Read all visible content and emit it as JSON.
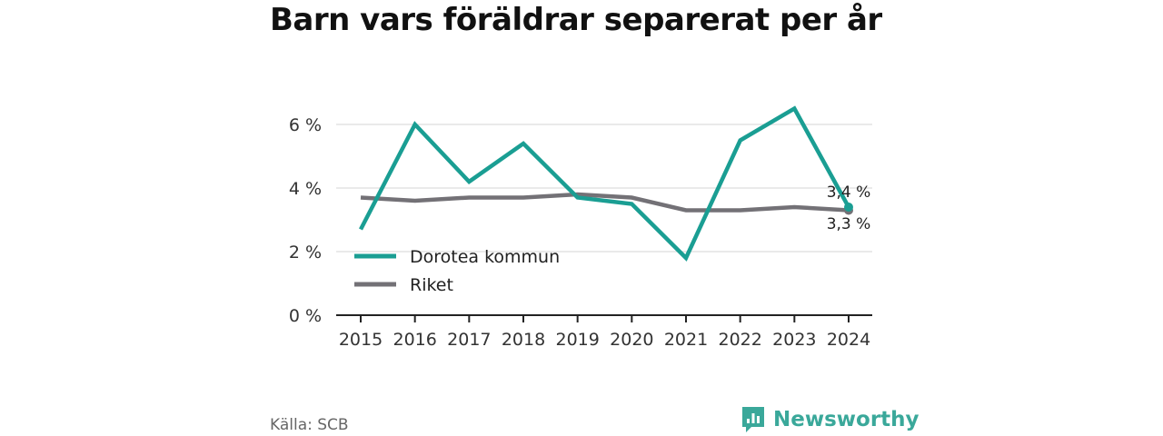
{
  "title": "Barn vars föräldrar separerat per år",
  "source": "Källa: SCB",
  "brand": {
    "name": "Newsworthy",
    "icon": "newsworthy-logo-icon",
    "color": "#3aa89a"
  },
  "chart_data": {
    "type": "line",
    "categories": [
      "2015",
      "2016",
      "2017",
      "2018",
      "2019",
      "2020",
      "2021",
      "2022",
      "2023",
      "2024"
    ],
    "series": [
      {
        "name": "Dorotea kommun",
        "color": "#1a9e93",
        "values": [
          2.7,
          6.0,
          4.2,
          5.4,
          3.7,
          3.5,
          1.8,
          5.5,
          6.5,
          3.4
        ]
      },
      {
        "name": "Riket",
        "color": "#737176",
        "values": [
          3.7,
          3.6,
          3.7,
          3.7,
          3.8,
          3.7,
          3.3,
          3.3,
          3.4,
          3.3
        ]
      }
    ],
    "y_ticks": [
      {
        "value": 0,
        "label": "0 %"
      },
      {
        "value": 2,
        "label": "2 %"
      },
      {
        "value": 4,
        "label": "4 %"
      },
      {
        "value": 6,
        "label": "6 %"
      }
    ],
    "ylim": [
      0,
      6.5
    ],
    "grid": true,
    "legend_position": "bottom-left",
    "end_labels": [
      "3,4 %",
      "3,3 %"
    ]
  }
}
